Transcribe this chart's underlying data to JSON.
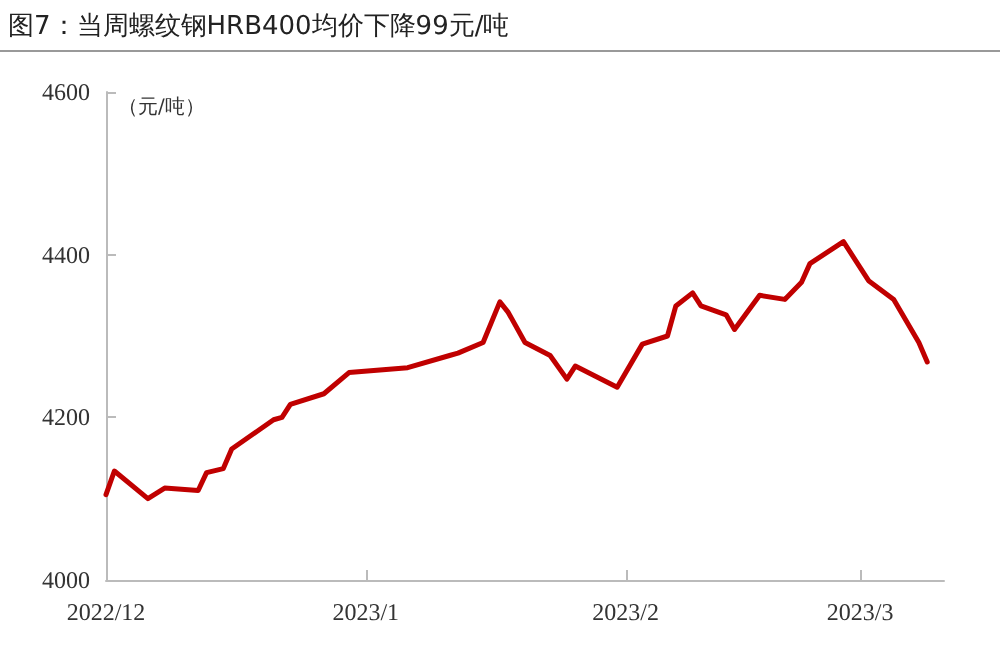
{
  "chart_data": {
    "type": "line",
    "title": "图7：当周螺纹钢HRB400均价下降99元/吨",
    "ylabel": "（元/吨）",
    "x": [
      "2022-12-01",
      "2022-12-02",
      "2022-12-06",
      "2022-12-08",
      "2022-12-12",
      "2022-12-13",
      "2022-12-15",
      "2022-12-16",
      "2022-12-21",
      "2022-12-22",
      "2022-12-23",
      "2022-12-27",
      "2022-12-30",
      "2023-01-06",
      "2023-01-11",
      "2023-01-12",
      "2023-01-15",
      "2023-01-17",
      "2023-01-18",
      "2023-01-20",
      "2023-01-23",
      "2023-01-25",
      "2023-01-26",
      "2023-01-31",
      "2023-02-03",
      "2023-02-06",
      "2023-02-07",
      "2023-02-09",
      "2023-02-10",
      "2023-02-13",
      "2023-02-14",
      "2023-02-17",
      "2023-02-20",
      "2023-02-22",
      "2023-02-23",
      "2023-02-27",
      "2023-03-02",
      "2023-03-05",
      "2023-03-08",
      "2023-03-09"
    ],
    "series": [
      {
        "color": "#c00000",
        "values": [
          4105,
          4134,
          4100,
          4113,
          4110,
          4132,
          4137,
          4161,
          4197,
          4200,
          4216,
          4229,
          4255,
          4261,
          4276,
          4279,
          4292,
          4342,
          4329,
          4292,
          4276,
          4247,
          4263,
          4237,
          4290,
          4300,
          4337,
          4353,
          4337,
          4326,
          4308,
          4350,
          4345,
          4366,
          4389,
          4416,
          4368,
          4345,
          4292,
          4268
        ]
      }
    ],
    "xlim": [
      "2022-12-01",
      "2023-03-11"
    ],
    "xticks": [
      {
        "value": "2022-12-01",
        "label": "2022/12"
      },
      {
        "value": "2023-01-01",
        "label": "2023/1"
      },
      {
        "value": "2023-02-01",
        "label": "2023/2"
      },
      {
        "value": "2023-03-01",
        "label": "2023/3"
      }
    ],
    "ylim": [
      4000,
      4600
    ],
    "yticks": [
      4000,
      4200,
      4400,
      4600
    ],
    "grid": false,
    "marker": "none",
    "line_style": "solid"
  }
}
